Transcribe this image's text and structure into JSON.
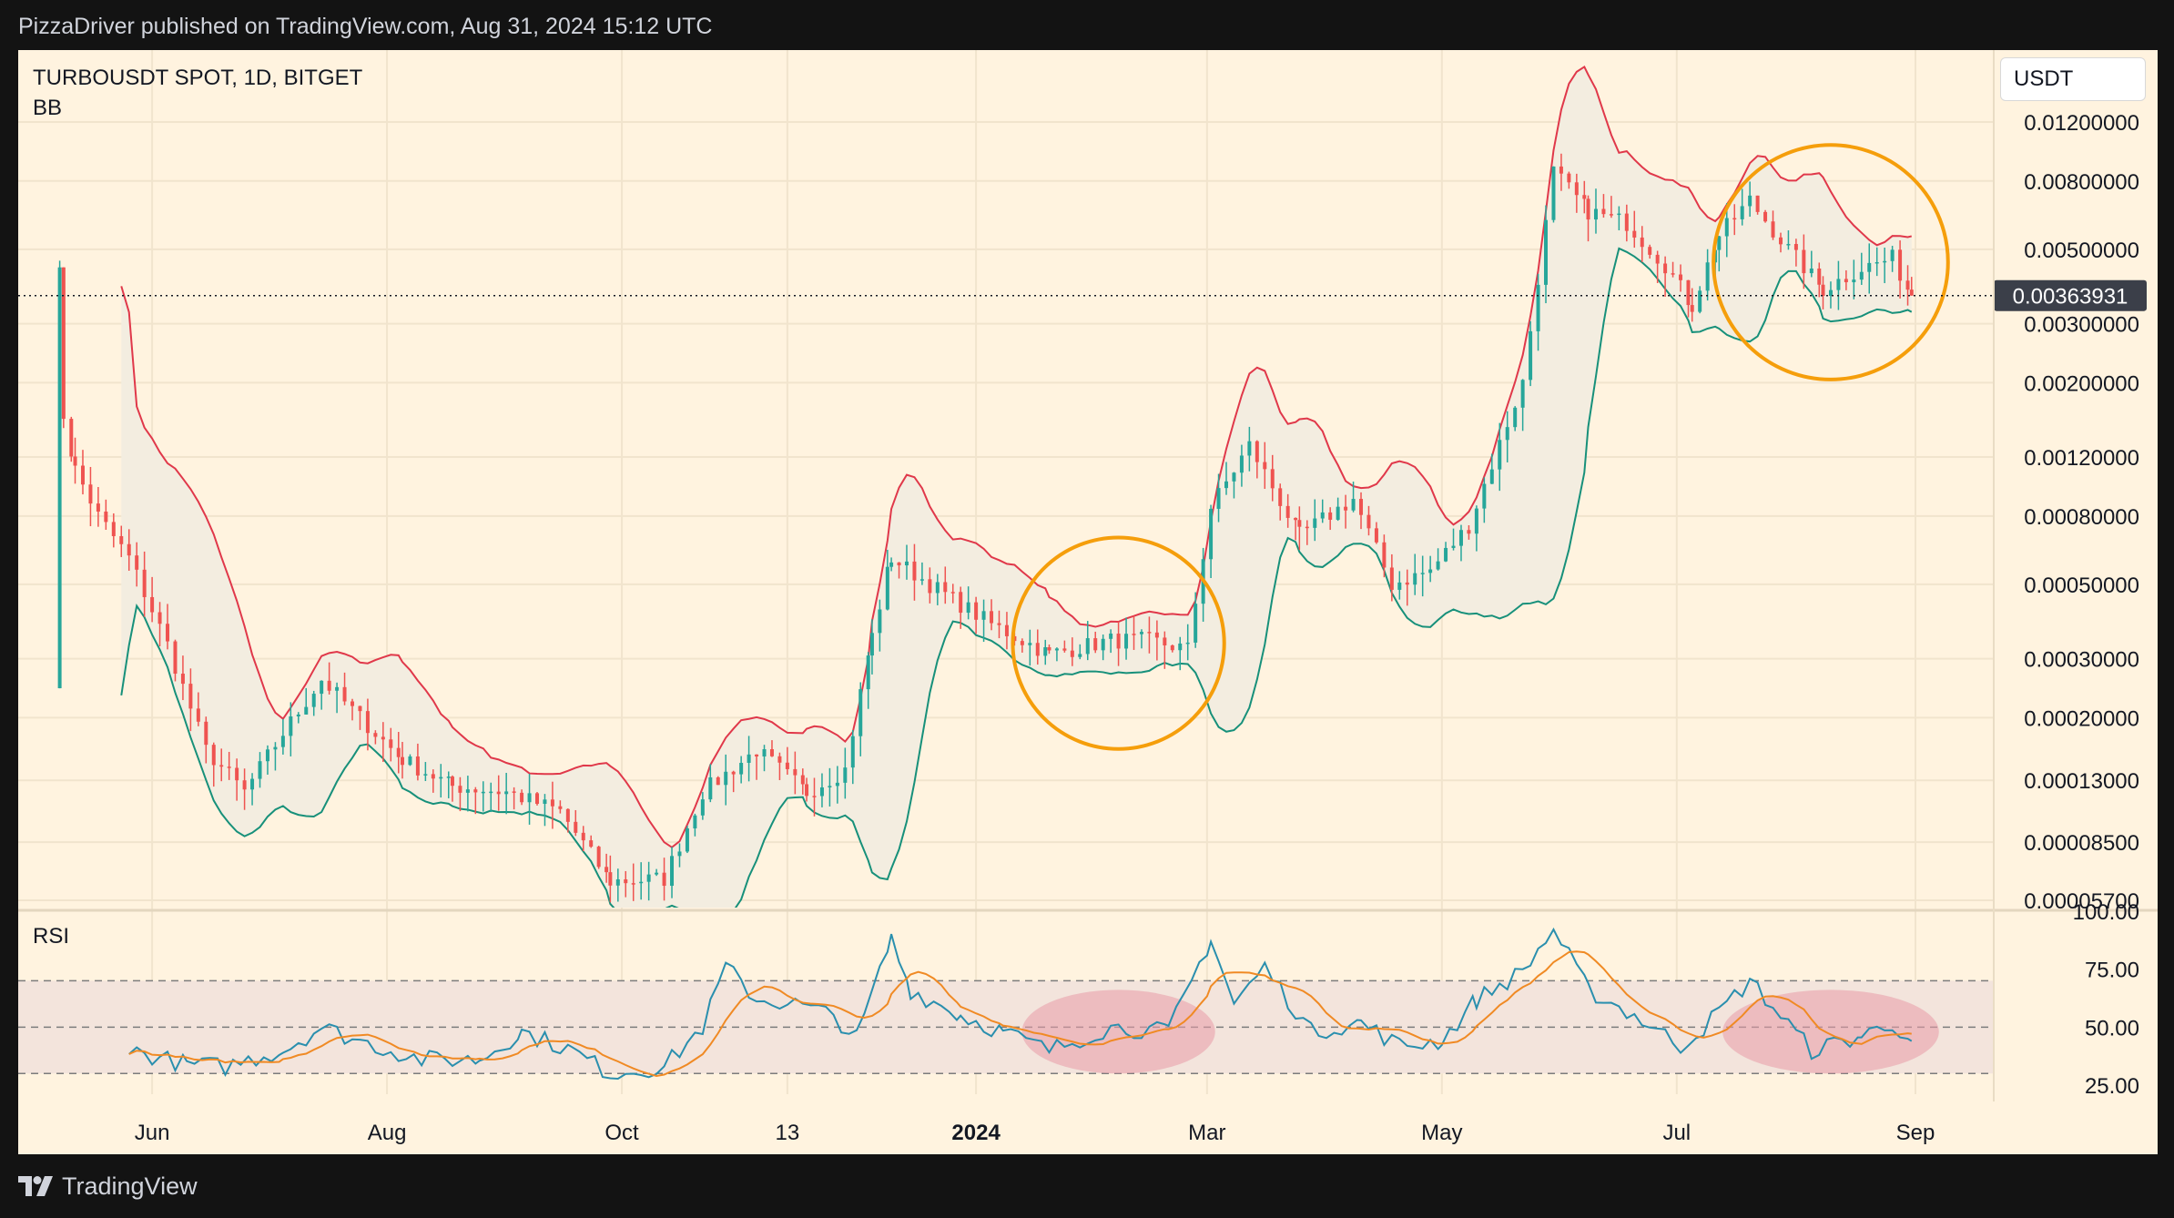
{
  "header": {
    "published_by": "PizzaDriver published on TradingView.com, Aug 31, 2024 15:12 UTC"
  },
  "footer": {
    "brand": "TradingView"
  },
  "colors": {
    "background": "#fff3df",
    "candle_up": "#26a69a",
    "candle_down": "#ef5350",
    "bb_upper": "#e0384a",
    "bb_lower": "#17907a",
    "bb_fill": "#f3ede0",
    "rsi_line": "#2a8fae",
    "rsi_ma": "#f08a24",
    "rsi_band": "#f3e4dc",
    "highlight_ring": "#f59e0b",
    "highlight_blob": "#e79aa8",
    "last_price_bg": "#3b3f49"
  },
  "chart_data": [
    {
      "type": "candlestick",
      "symbol": "TURBOUSDT SPOT, 1D, BITGET",
      "indicator": "BB",
      "currency": "USDT",
      "y_scale": "log",
      "ylim": [
        5.7e-05,
        0.012
      ],
      "y_ticks": [
        "0.01200000",
        "0.00800000",
        "0.00500000",
        "0.00300000",
        "0.00200000",
        "0.00120000",
        "0.00080000",
        "0.00050000",
        "0.00030000",
        "0.00020000",
        "0.00013000",
        "0.00008500",
        "0.00005700"
      ],
      "x_ticks": [
        "Jun",
        "Aug",
        "Oct",
        "13",
        "2024",
        "Mar",
        "May",
        "Jul",
        "Sep"
      ],
      "last_price": "0.00363931",
      "price_path": [
        [
          "2023-05-07",
          0.00026
        ],
        [
          "2023-05-08",
          0.0042
        ],
        [
          "2023-05-09",
          0.0016
        ],
        [
          "2023-05-12",
          0.0011
        ],
        [
          "2023-05-18",
          0.0008
        ],
        [
          "2023-05-26",
          0.0006
        ],
        [
          "2023-06-05",
          0.00033
        ],
        [
          "2023-06-15",
          0.00016
        ],
        [
          "2023-06-25",
          0.00012
        ],
        [
          "2023-07-05",
          0.00018
        ],
        [
          "2023-07-15",
          0.00026
        ],
        [
          "2023-07-25",
          0.0002
        ],
        [
          "2023-08-05",
          0.00015
        ],
        [
          "2023-08-18",
          0.000125
        ],
        [
          "2023-09-01",
          0.00012
        ],
        [
          "2023-09-15",
          0.000105
        ],
        [
          "2023-09-28",
          6.5e-05
        ],
        [
          "2023-10-12",
          6.6e-05
        ],
        [
          "2023-10-22",
          0.00012
        ],
        [
          "2023-11-05",
          0.00016
        ],
        [
          "2023-11-18",
          0.00012
        ],
        [
          "2023-11-28",
          0.00014
        ],
        [
          "2023-12-05",
          0.00035
        ],
        [
          "2023-12-10",
          0.0006
        ],
        [
          "2023-12-20",
          0.0005
        ],
        [
          "2024-01-05",
          0.00038
        ],
        [
          "2024-01-20",
          0.00031
        ],
        [
          "2024-02-05",
          0.00034
        ],
        [
          "2024-02-15",
          0.00034
        ],
        [
          "2024-02-25",
          0.00032
        ],
        [
          "2024-03-02",
          0.00085
        ],
        [
          "2024-03-12",
          0.0013
        ],
        [
          "2024-03-25",
          0.0007
        ],
        [
          "2024-04-08",
          0.0009
        ],
        [
          "2024-04-18",
          0.0005
        ],
        [
          "2024-04-28",
          0.00055
        ],
        [
          "2024-05-08",
          0.00075
        ],
        [
          "2024-05-22",
          0.002
        ],
        [
          "2024-05-30",
          0.0085
        ],
        [
          "2024-06-08",
          0.0065
        ],
        [
          "2024-06-18",
          0.006
        ],
        [
          "2024-06-28",
          0.0045
        ],
        [
          "2024-07-05",
          0.0034
        ],
        [
          "2024-07-12",
          0.0055
        ],
        [
          "2024-07-20",
          0.007
        ],
        [
          "2024-07-30",
          0.005
        ],
        [
          "2024-08-08",
          0.0038
        ],
        [
          "2024-08-18",
          0.0044
        ],
        [
          "2024-08-26",
          0.0047
        ],
        [
          "2024-08-31",
          0.00364
        ]
      ],
      "highlights": [
        {
          "type": "circle",
          "from": "2024-01-20",
          "to": "2024-02-25"
        },
        {
          "type": "circle",
          "from": "2024-07-20",
          "to": "2024-08-31"
        }
      ]
    },
    {
      "type": "line",
      "title": "RSI",
      "ylim": [
        20,
        100
      ],
      "y_ticks": [
        "100.00",
        "75.00",
        "50.00",
        "25.00"
      ],
      "band": [
        30,
        70
      ],
      "mid": 50,
      "rsi_path": [
        [
          "2023-05-26",
          40
        ],
        [
          "2023-06-10",
          34
        ],
        [
          "2023-06-20",
          33
        ],
        [
          "2023-07-05",
          40
        ],
        [
          "2023-07-15",
          50
        ],
        [
          "2023-07-25",
          44
        ],
        [
          "2023-08-10",
          36
        ],
        [
          "2023-08-25",
          36
        ],
        [
          "2023-09-05",
          48
        ],
        [
          "2023-09-18",
          40
        ],
        [
          "2023-09-28",
          30
        ],
        [
          "2023-10-12",
          33
        ],
        [
          "2023-10-22",
          50
        ],
        [
          "2023-10-28",
          76
        ],
        [
          "2023-11-05",
          62
        ],
        [
          "2023-11-15",
          60
        ],
        [
          "2023-11-25",
          55
        ],
        [
          "2023-12-01",
          45
        ],
        [
          "2023-12-10",
          88
        ],
        [
          "2023-12-15",
          66
        ],
        [
          "2023-12-28",
          55
        ],
        [
          "2024-01-08",
          48
        ],
        [
          "2024-01-20",
          40
        ],
        [
          "2024-02-05",
          50
        ],
        [
          "2024-02-20",
          48
        ],
        [
          "2024-03-02",
          88
        ],
        [
          "2024-03-08",
          60
        ],
        [
          "2024-03-16",
          76
        ],
        [
          "2024-03-28",
          48
        ],
        [
          "2024-04-10",
          52
        ],
        [
          "2024-04-20",
          42
        ],
        [
          "2024-05-01",
          44
        ],
        [
          "2024-05-10",
          62
        ],
        [
          "2024-05-22",
          74
        ],
        [
          "2024-05-30",
          92
        ],
        [
          "2024-06-08",
          66
        ],
        [
          "2024-06-20",
          55
        ],
        [
          "2024-07-02",
          42
        ],
        [
          "2024-07-08",
          50
        ],
        [
          "2024-07-20",
          70
        ],
        [
          "2024-07-28",
          55
        ],
        [
          "2024-08-05",
          40
        ],
        [
          "2024-08-18",
          46
        ],
        [
          "2024-08-26",
          52
        ],
        [
          "2024-08-31",
          44
        ]
      ],
      "highlights": [
        {
          "type": "blob",
          "from": "2024-01-20",
          "to": "2024-02-25"
        },
        {
          "type": "blob",
          "from": "2024-07-20",
          "to": "2024-08-31"
        }
      ]
    }
  ]
}
